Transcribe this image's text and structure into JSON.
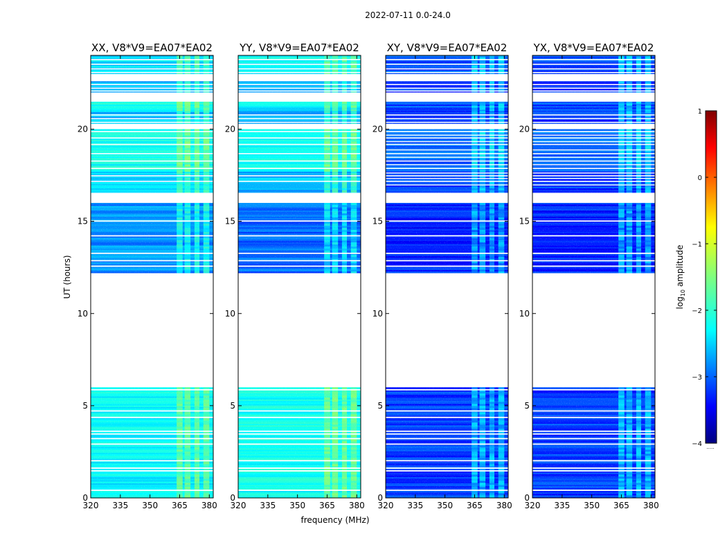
{
  "figure": {
    "suptitle": "2022-07-11 0.0-24.0",
    "ylabel": "UT (hours)",
    "xlabel": "frequency (MHz)"
  },
  "chart_data": {
    "type": "heatmap",
    "title": "2022-07-11 0.0-24.0",
    "xlabel": "frequency (MHz)",
    "ylabel": "UT (hours)",
    "xlim": [
      320,
      382
    ],
    "ylim": [
      0,
      24
    ],
    "x_ticks": [
      320,
      335,
      350,
      365,
      380
    ],
    "y_ticks": [
      0,
      5,
      10,
      15,
      20
    ],
    "colorbar": {
      "label": "log10 amplitude",
      "label_base": "log",
      "label_sub": "10",
      "label_rest": " amplitude",
      "range": [
        -4,
        1
      ],
      "ticks": [
        1,
        0,
        -1,
        -2,
        -3,
        -4
      ],
      "tick_labels": [
        "1",
        "0",
        "−1",
        "−2",
        "−3",
        "−4"
      ],
      "colormap": "jet",
      "footer": "....."
    },
    "data_segments_hours": [
      [
        0.0,
        6.0
      ],
      [
        12.2,
        16.0
      ],
      [
        16.5,
        17.7
      ],
      [
        17.7,
        20.0
      ],
      [
        20.3,
        21.0
      ],
      [
        21.0,
        21.5
      ],
      [
        22.0,
        22.6
      ],
      [
        23.0,
        24.0
      ]
    ],
    "gap_hours": [
      [
        6.0,
        12.2
      ],
      [
        16.0,
        16.5
      ],
      [
        21.6,
        22.0
      ],
      [
        22.6,
        23.0
      ]
    ],
    "rfi_band_mhz": [
      [
        363.5,
        366.5
      ],
      [
        367.5,
        370.5
      ],
      [
        372.5,
        375.0
      ],
      [
        377.0,
        380.0
      ]
    ],
    "panels": [
      {
        "title": "XX, V8*V9=EA07*EA02",
        "pol": "XX",
        "base_level_by_segment": [
          -2.3,
          -2.8,
          -2.5,
          -2.2,
          -2.6,
          -2.2,
          -2.6,
          -2.4
        ]
      },
      {
        "title": "YY, V8*V9=EA07*EA02",
        "pol": "YY",
        "base_level_by_segment": [
          -2.2,
          -3.0,
          -2.6,
          -2.2,
          -2.7,
          -2.3,
          -2.6,
          -2.3
        ]
      },
      {
        "title": "XY, V8*V9=EA07*EA02",
        "pol": "XY",
        "base_level_by_segment": [
          -3.2,
          -3.3,
          -3.2,
          -3.0,
          -3.2,
          -3.1,
          -3.2,
          -3.1
        ]
      },
      {
        "title": "YX, V8*V9=EA07*EA02",
        "pol": "YX",
        "base_level_by_segment": [
          -3.2,
          -3.3,
          -3.2,
          -3.0,
          -3.2,
          -3.1,
          -3.2,
          -3.1
        ]
      }
    ]
  }
}
